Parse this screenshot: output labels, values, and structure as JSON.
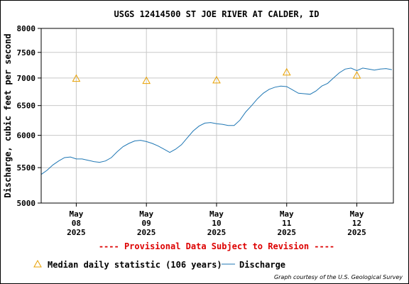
{
  "chart_data": {
    "type": "line",
    "title": "USGS 12414500 ST JOE RIVER AT CALDER, ID",
    "ylabel": "Discharge, cubic feet per second",
    "xlabel": "",
    "ylim": [
      5000,
      8000
    ],
    "y_scale": "log",
    "y_ticks": [
      "8000",
      "7500",
      "7000",
      "6500",
      "6000",
      "5500",
      "5000"
    ],
    "y_tick_values": [
      8000,
      7500,
      7000,
      6500,
      6000,
      5500,
      5000
    ],
    "x_range": [
      "2025-05-07T12:00",
      "2025-05-12T12:30"
    ],
    "x_ticks": [
      {
        "month": "May",
        "day": "08",
        "year": "2025",
        "value": "2025-05-08T00:00"
      },
      {
        "month": "May",
        "day": "09",
        "year": "2025",
        "value": "2025-05-09T00:00"
      },
      {
        "month": "May",
        "day": "10",
        "year": "2025",
        "value": "2025-05-10T00:00"
      },
      {
        "month": "May",
        "day": "11",
        "year": "2025",
        "value": "2025-05-11T00:00"
      },
      {
        "month": "May",
        "day": "12",
        "year": "2025",
        "value": "2025-05-12T00:00"
      }
    ],
    "grid": true,
    "legend_position": "bottom",
    "series": [
      {
        "name": "Discharge",
        "kind": "line",
        "color": "#1f77b4",
        "x": [
          "2025-05-07T12:00",
          "2025-05-07T14:00",
          "2025-05-07T16:00",
          "2025-05-07T18:00",
          "2025-05-07T20:00",
          "2025-05-07T22:00",
          "2025-05-08T00:00",
          "2025-05-08T02:00",
          "2025-05-08T04:00",
          "2025-05-08T06:00",
          "2025-05-08T08:00",
          "2025-05-08T10:00",
          "2025-05-08T12:00",
          "2025-05-08T14:00",
          "2025-05-08T16:00",
          "2025-05-08T18:00",
          "2025-05-08T20:00",
          "2025-05-08T22:00",
          "2025-05-09T00:00",
          "2025-05-09T02:00",
          "2025-05-09T04:00",
          "2025-05-09T06:00",
          "2025-05-09T08:00",
          "2025-05-09T10:00",
          "2025-05-09T12:00",
          "2025-05-09T14:00",
          "2025-05-09T16:00",
          "2025-05-09T18:00",
          "2025-05-09T20:00",
          "2025-05-09T22:00",
          "2025-05-10T00:00",
          "2025-05-10T02:00",
          "2025-05-10T04:00",
          "2025-05-10T06:00",
          "2025-05-10T08:00",
          "2025-05-10T10:00",
          "2025-05-10T12:00",
          "2025-05-10T14:00",
          "2025-05-10T16:00",
          "2025-05-10T18:00",
          "2025-05-10T20:00",
          "2025-05-10T22:00",
          "2025-05-11T00:00",
          "2025-05-11T02:00",
          "2025-05-11T04:00",
          "2025-05-11T06:00",
          "2025-05-11T08:00",
          "2025-05-11T10:00",
          "2025-05-11T12:00",
          "2025-05-11T14:00",
          "2025-05-11T16:00",
          "2025-05-11T18:00",
          "2025-05-11T20:00",
          "2025-05-11T22:00",
          "2025-05-12T00:00",
          "2025-05-12T02:00",
          "2025-05-12T04:00",
          "2025-05-12T06:00",
          "2025-05-12T08:00",
          "2025-05-12T10:00",
          "2025-05-12T12:00"
        ],
        "y": [
          5400,
          5460,
          5540,
          5600,
          5650,
          5660,
          5630,
          5630,
          5610,
          5590,
          5580,
          5600,
          5650,
          5740,
          5820,
          5870,
          5910,
          5920,
          5900,
          5870,
          5830,
          5780,
          5730,
          5780,
          5850,
          5960,
          6070,
          6150,
          6200,
          6210,
          6190,
          6180,
          6160,
          6160,
          6250,
          6390,
          6500,
          6620,
          6720,
          6790,
          6830,
          6850,
          6840,
          6780,
          6720,
          6710,
          6700,
          6760,
          6850,
          6900,
          7000,
          7100,
          7170,
          7190,
          7140,
          7190,
          7170,
          7150,
          7170,
          7180,
          7160
        ]
      },
      {
        "name": "Median daily statistic (106 years)",
        "kind": "marker",
        "marker": "triangle",
        "color": "#e8a000",
        "x": [
          "2025-05-08T00:00",
          "2025-05-09T00:00",
          "2025-05-10T00:00",
          "2025-05-11T00:00",
          "2025-05-12T00:00"
        ],
        "y": [
          6990,
          6950,
          6960,
          7110,
          7050
        ]
      }
    ],
    "annotations": [
      "---- Provisional Data Subject to Revision ----"
    ],
    "credit": "Graph courtesy of the U.S. Geological Survey"
  }
}
